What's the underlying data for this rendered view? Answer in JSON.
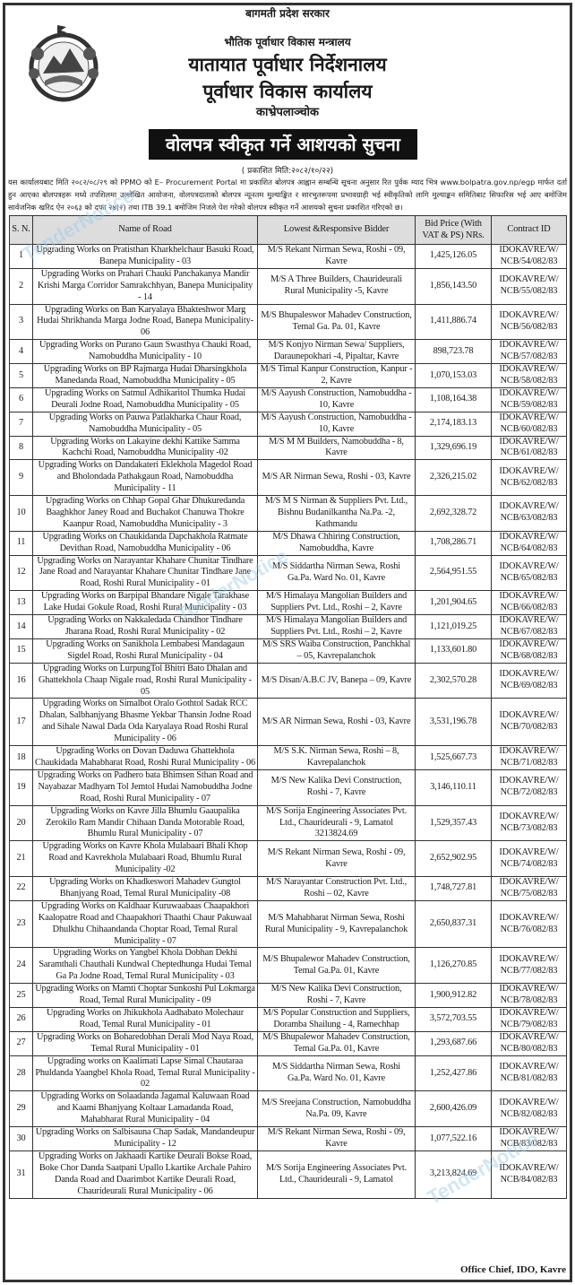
{
  "header": {
    "government": "बागमती प्रदेश सरकार",
    "ministry": "भौतिक पूर्वाधार विकास मन्त्रालय",
    "directorate": "यातायात पूर्वाधार निर्देशनालय",
    "office": "पूर्वाधार विकास कार्यालय",
    "location": "काभ्रेपलाञ्चोक",
    "notice_title": "वोलपत्र स्वीकृत गर्ने आशयको सुचना",
    "published": "( प्रकाशित मिति:२०८२/१०/२२)",
    "paragraph": "यस कार्यालयबाट मिति २०८२/०८/२९ को PPMO को E– Procurement Portal मा प्रकाशित बोलपत्र आह्वान सम्बन्धि सूचना अनुसार रित पुर्वक म्याद भित्र www.bolpatra.gov.np/egp मार्फत दर्ता हुन आएका बोलपत्रहरू मध्ये तपशिलमा उल्लेखित आयोजना, वोलपत्रदाताको बोलपत्र न्यूनतम मुल्याङ्कित र सारभुतरूपमा प्रभावग्राही भई स्वीकृतिको लागि मुल्याङ्कन समितिबाट सिफारिस भई आए बमोजिम सार्वजनिक खरिद ऐन २०६३ को दफा २४(२) तथा ITB 39.1 बमोजिम निजले पेश गरेको वोलपत्र स्वीकृत गर्ने आशयको सुचना प्रकाशित गरिएको छ।"
  },
  "table": {
    "columns": [
      "S. N.",
      "Name of Road",
      "Lowest &Responsive Bidder",
      "Bid Price (With VAT & PS) NRs.",
      "Contract ID"
    ],
    "rows": [
      [
        "1",
        "Upgrading Works on Pratisthan Kharkhelchaur Basuki Road, Banepa Municipality - 03",
        "M/S Rekant Nirman Sewa, Roshi - 09, Kavre",
        "1,425,126.05",
        "IDOKAVRE/W/ NCB/54/082/83"
      ],
      [
        "2",
        "Upgrading Works on Prahari Chauki Panchakanya Mandir Krishi Marga Corridor Samrakchhyan, Banepa Municipality - 14",
        "M/S A Three Builders, Chaurideurali Rural Municipality -5, Kavre",
        "1,856,143.50",
        "IDOKAVRE/W/ NCB/55/082/83"
      ],
      [
        "3",
        "Upgrading Works on Ban Karyalaya Bhakteshwor Marg Hudai Shrikhanda Marga Jodne Road, Banepa Municipality-06",
        "M/S Bhupaleswor Mahadev Construction, Temal Ga. Pa. 01, Kavre",
        "1,411,886.74",
        "IDOKAVRE/W/ NCB/56/082/83"
      ],
      [
        "4",
        "Upgrading Works on Purano Gaun Swasthya Chauki Road, Namobuddha Municipality - 10",
        "M/S Konjyo Nirman Sewa/ Suppliers, Daraunepokhari -4, Pipaltar, Kavre",
        "898,723.78",
        "IDOKAVRE/W/ NCB/57/082/83"
      ],
      [
        "5",
        "Upgrading Works on BP Rajmarga Hudai Dharsingkhola Manedanda Road, Namobuddha Municipality - 05",
        "M/S Timal Kanpur Construction, Kanpur - 2, Kavre",
        "1,070,153.03",
        "IDOKAVRE/W/ NCB/58/082/83"
      ],
      [
        "6",
        "Upgrading Works on Satmul Adhikaritol Thumka Hudai Deurali Jodne Road, Namobuddha Municipality - 05",
        "M/S Aayush Construction, Namobuddha - 10, Kavre",
        "1,108,164.38",
        "IDOKAVRE/W/ NCB/59/082/83"
      ],
      [
        "7",
        "Upgrading Works on Pauwa Patlakharka Chaur Road, Namobuddha Municipality - 05",
        "M/S Aayush Construction, Namobuddha - 10, Kavre",
        "2,174,183.13",
        "IDOKAVRE/W/ NCB/60/082/83"
      ],
      [
        "8",
        "Upgrading Works on Lakayine dekhi Kattike Samma Kachchi Road, Namobuddha Municipality -02",
        "M/S M M Builders, Namobuddha - 8, Kavre",
        "1,329,696.19",
        "IDOKAVRE/W/ NCB/61/082/83"
      ],
      [
        "9",
        "Upgrading Works on Dandakateri Eklekhola Magedol Road and Bholondada Pathakgaun Road, Namobuddha Municipality - 11",
        "M/S AR Nirman Sewa, Roshi - 03, Kavre",
        "2,326,215.02",
        "IDOKAVRE/W/ NCB/62/082/83"
      ],
      [
        "10",
        "Upgrading Works on Chhap Gopal Ghar Dhukuredanda Baaghkhor Janey Road and Buchakot Chanuwa Thokre Kaanpur Road, Namobuddha Municipality - 3",
        "M/S M S Nirman & Suppliers Pvt. Ltd., Bishnu Budanilkantha Na.Pa. -2, Kathmandu",
        "2,692,328.72",
        "IDOKAVRE/W/ NCB/63/082/83"
      ],
      [
        "11",
        "Upgrading Works on Chaukidanda Dapchakhola Ratmate Devithan Road, Namobuddha Municipality - 06",
        "M/S Dhawa Chhiring Construction, Namobuddha, Kavre",
        "1,708,286.71",
        "IDOKAVRE/W/ NCB/64/082/83"
      ],
      [
        "12",
        "Upgrading Works on Narayantar Khahare Chunitar Tindhare Jane Road and Narayantar Khahare Chunitar Tindhare Jane Road, Roshi Rural Municipality - 01",
        "M/S Siddartha Nirman Sewa, Roshi Ga.Pa. Ward No. 01, Kavre",
        "2,564,951.55",
        "IDOKAVRE/W/ NCB/65/082/83"
      ],
      [
        "13",
        "Upgrading Works on Barpipal Bhandare Nigale Tarakhase Lake Hudai Gokule Road, Roshi Rural Municipality - 03",
        "M/S Himalaya Mangolian Builders and Suppliers Pvt. Ltd., Roshi – 2, Kavre",
        "1,201,904.65",
        "IDOKAVRE/W/ NCB/66/082/83"
      ],
      [
        "14",
        "Upgrading Works on Nakkaledada Chandhor Tindhare Jharana Road, Roshi Rural Municipality - 02",
        "M/S Himalaya Mangolian Builders and Suppliers Pvt. Ltd., Roshi – 2, Kavre",
        "1,121,019.25",
        "IDOKAVRE/W/ NCB/67/082/83"
      ],
      [
        "15",
        "Upgrading Works on Sanikhola Lembabesi Mandagaun Sigdel Road, Roshi Rural Municipality - 04",
        "M/S SRS Waiba Construction, Panchkhal – 05, Kavrepalanchok",
        "1,133,601.80",
        "IDOKAVRE/W/ NCB/68/082/83"
      ],
      [
        "16",
        "Upgrading Works on LurpungTol Bhitri Bato Dhalan and Ghattekhola Chaap Nigale road, Roshi Rural Municipality - 05",
        "M/S Disan/A.B.C JV, Banepa – 09, Kavre",
        "2,302,570.28",
        "IDOKAVRE/W/ NCB/69/082/83"
      ],
      [
        "17",
        "Upgrading Works on Simalbot Oralo Gothtol Sadak RCC Dhalan, Salbhanjyang Bhasme Yekbar Thansin Jodne Road and Sihale Nawal Dada Oda Karyalaya Road Roshi Rural Municipality - 06",
        "M/S AR Nirman Sewa, Roshi - 03, Kavre",
        "3,531,196.78",
        "IDOKAVRE/W/ NCB/70/082/83"
      ],
      [
        "18",
        "Upgrading Works on Dovan Daduwa Ghattekhola Chaukidada Mahabharat Road, Roshi Rural Municipality - 06",
        "M/S S.K. Nirman Sewa, Roshi – 8, Kavrepalanchok",
        "1,525,667.73",
        "IDOKAVRE/W/ NCB/71/082/83"
      ],
      [
        "19",
        "Upgrading Works on Padhero bata Bhimsen Sthan Road and Nayabazar Madhyam Tol Jemtol Hudai Namobuddha Jodne Road, Roshi Rural Municipality - 07",
        "M/S New Kalika Devi Construction, Roshi - 7, Kavre",
        "3,146,110.11",
        "IDOKAVRE/W/ NCB/72/082/83"
      ],
      [
        "20",
        "Upgrading Works on Kavre Jilla Bhumlu Gaaupalika Zerokilo Ram Mandir Chihaan Danda Motorable Road, Bhumlu Rural Municipality - 07",
        "M/S Sorija Engineering Associates Pvt. Ltd., Chaurideurali - 9, Lamatol 3213824.69",
        "1,529,357.43",
        "IDOKAVRE/W/ NCB/73/082/83"
      ],
      [
        "21",
        "Upgrading Works on Kavre Khola Mulabaari Bhali Khop Road and Kavrekhola Mulabaari Road, Bhumlu Rural Municipality -02",
        "M/S Rekant Nirman Sewa, Roshi - 09, Kavre",
        "2,652,902.95",
        "IDOKAVRE/W/ NCB/74/082/83"
      ],
      [
        "22",
        "Upgrading Works on Khadkeswori Mahadev Gungtol Bhanjyang Road, Temal Rural Municipality -08",
        "M/S Narayantar Construction Pvt. Ltd., Roshi – 02, Kavre",
        "1,748,727.81",
        "IDOKAVRE/W/ NCB/75/082/83"
      ],
      [
        "23",
        "Upgrading Works on Kaldhaar Kuruwaabaas Chaapakhori Kaalopatre Road and Chaapakhori Thaathi Chaur Pakuwaal Dhulkhu Chihaandanda Choptar Road, Temal Rural Municipality - 07",
        "M/S Mahabharat Nirman Sewa, Roshi Rural Municipality - 9, Kavrepalanchok",
        "2,650,837.31",
        "IDOKAVRE/W/ NCB/76/082/83"
      ],
      [
        "24",
        "Upgrading Works on Yangbel Khola Dobhan Dekhi Saramthali Chauthali Kundwal Cheptedhunga Hudai Temal Ga Pa Jodne Road, Temal Rural Municipality - 03",
        "M/S Bhupalewor Mahadev Construction, Temal Ga.Pa. 01, Kavre",
        "1,126,270.85",
        "IDOKAVRE/W/ NCB/77/082/83"
      ],
      [
        "25",
        "Upgrading Works on Mamti Choptar Sunkoshi Pul Lokmarga Road, Temal Rural Municipality - 09",
        "M/S New Kalika Devi Construction, Roshi - 7, Kavre",
        "1,900,912.82",
        "IDOKAVRE/W/ NCB/78/082/83"
      ],
      [
        "26",
        "Upgrading Works on Jhikukhola Aadhabato Molechaur Road, Temal Rural Municipality - 01",
        "M/S Popular Construction and Suppliers, Doramba Shailung - 4, Ramechhap",
        "3,572,703.55",
        "IDOKAVRE/W/ NCB/79/082/83"
      ],
      [
        "27",
        "Upgrading Works on Boharedobhan Derali Mod Naya Road, Temal Rural Municipality - 01",
        "M/S Bhupalewor Mahadev Construction, Temal Ga.Pa. 01, Kavre",
        "1,293,687.66",
        "IDOKAVRE/W/ NCB/80/082/83"
      ],
      [
        "28",
        "Upgrading works on Kaalimati Lapse Simal Chautaraa Phuldanda Yaangbel Khola Road, Temal Rural Municipality - 02",
        "M/S Siddartha Nirman Sewa, Roshi Ga.Pa. Ward No. 01, Kavre",
        "1,252,427.86",
        "IDOKAVRE/W/ NCB/81/082/83"
      ],
      [
        "29",
        "Upgrading Works on Solaadanda Jagamal Kaluwaan Road and Kaami Bhanjyang Koltaar Lamadanda Road, Mahabharat Rural Municipality - 04",
        "M/S Sreejana Construction, Namobuddha Na.Pa. 09, Kavre",
        "2,600,426.09",
        "IDOKAVRE/W/ NCB/82/082/83"
      ],
      [
        "30",
        "Upgrading Works on Salbisauna Chap Sadak, Mandandeupur Municipality - 12",
        "M/S Rekant Nirman Sewa, Roshi - 09, Kavre",
        "1,077,522.16",
        "IDOKAVRE/W/ NCB/83/082/83"
      ],
      [
        "31",
        "Upgrading Works on Jakhaadi Kartike Deurali Bokse Road, Boke Chor Danda Saatpani Upallo Lkartike Archale Pahiro Danda Road and Daarimbot Kartike Deurali Road, Chaurideurali Rural Municipality - 06",
        "M/S Sorija Engineering Associates Pvt. Ltd., Chaurideurali - 9, Lamatol",
        "3,213,824.69",
        "IDOKAVRE/W/ NCB/84/082/83"
      ]
    ]
  },
  "footer": {
    "signature": "Office Chief, IDO, Kavre"
  },
  "watermark": "TenderNotice",
  "colors": {
    "banner": "#111111",
    "header_row": "#dddddd",
    "watermark": "#9cc9e6"
  }
}
